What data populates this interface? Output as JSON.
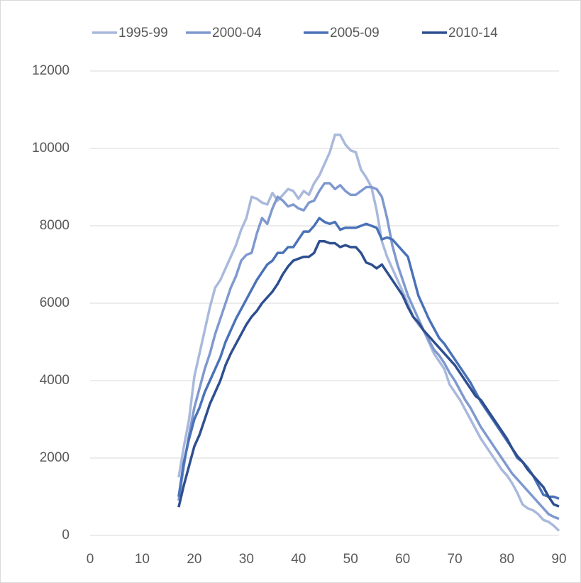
{
  "chart_data": {
    "type": "line",
    "x": [
      17,
      18,
      19,
      20,
      21,
      22,
      23,
      24,
      25,
      26,
      27,
      28,
      29,
      30,
      31,
      32,
      33,
      34,
      35,
      36,
      37,
      38,
      39,
      40,
      41,
      42,
      43,
      44,
      45,
      46,
      47,
      48,
      49,
      50,
      51,
      52,
      53,
      54,
      55,
      56,
      57,
      58,
      59,
      60,
      61,
      62,
      63,
      64,
      65,
      66,
      67,
      68,
      69,
      70,
      71,
      72,
      73,
      74,
      75,
      76,
      77,
      78,
      79,
      80,
      81,
      82,
      83,
      84,
      85,
      86,
      87,
      88,
      89,
      90
    ],
    "series": [
      {
        "name": "1995-99",
        "color": "#a9b9dc",
        "values": [
          1500,
          2300,
          3000,
          4100,
          4700,
          5300,
          5900,
          6400,
          6600,
          6900,
          7200,
          7500,
          7900,
          8200,
          8750,
          8700,
          8600,
          8550,
          8850,
          8650,
          8800,
          8950,
          8900,
          8700,
          8900,
          8800,
          9100,
          9300,
          9600,
          9900,
          10350,
          10350,
          10100,
          9950,
          9900,
          9450,
          9250,
          9000,
          8400,
          7600,
          7200,
          6900,
          6600,
          6300,
          6000,
          5650,
          5450,
          5300,
          5000,
          4700,
          4500,
          4300,
          3900,
          3700,
          3500,
          3250,
          3000,
          2750,
          2500,
          2300,
          2100,
          1900,
          1700,
          1550,
          1350,
          1100,
          800,
          700,
          650,
          550,
          400,
          350,
          250,
          120
        ]
      },
      {
        "name": "2000-04",
        "color": "#7f99cf",
        "values": [
          900,
          1800,
          2600,
          3300,
          3800,
          4300,
          4700,
          5200,
          5600,
          6000,
          6400,
          6700,
          7100,
          7250,
          7300,
          7800,
          8200,
          8050,
          8450,
          8750,
          8650,
          8500,
          8550,
          8450,
          8400,
          8600,
          8650,
          8900,
          9100,
          9100,
          8950,
          9050,
          8900,
          8800,
          8800,
          8900,
          9000,
          9000,
          8950,
          8750,
          8200,
          7500,
          7000,
          6600,
          6200,
          5900,
          5600,
          5300,
          5050,
          4800,
          4650,
          4450,
          4200,
          4000,
          3750,
          3500,
          3300,
          3050,
          2800,
          2600,
          2400,
          2200,
          2000,
          1800,
          1600,
          1450,
          1300,
          1150,
          1000,
          850,
          700,
          550,
          480,
          430
        ]
      },
      {
        "name": "2005-09",
        "color": "#4a72b8",
        "values": [
          1000,
          1900,
          2500,
          3000,
          3300,
          3700,
          4000,
          4300,
          4600,
          5000,
          5300,
          5600,
          5850,
          6100,
          6350,
          6600,
          6800,
          7000,
          7100,
          7300,
          7300,
          7450,
          7450,
          7650,
          7850,
          7850,
          8000,
          8200,
          8100,
          8050,
          8100,
          7900,
          7950,
          7950,
          7950,
          8000,
          8050,
          8000,
          7950,
          7650,
          7700,
          7650,
          7500,
          7350,
          7200,
          6700,
          6200,
          5900,
          5600,
          5350,
          5100,
          4950,
          4750,
          4550,
          4350,
          4150,
          3950,
          3700,
          3450,
          3250,
          3050,
          2850,
          2650,
          2450,
          2250,
          2000,
          1900,
          1750,
          1550,
          1300,
          1050,
          1000,
          1000,
          950
        ]
      },
      {
        "name": "2010-14",
        "color": "#2e4f8f",
        "values": [
          730,
          1300,
          1800,
          2300,
          2600,
          3000,
          3400,
          3700,
          4000,
          4400,
          4700,
          4950,
          5200,
          5450,
          5650,
          5800,
          6000,
          6150,
          6300,
          6500,
          6750,
          6950,
          7100,
          7150,
          7200,
          7200,
          7300,
          7600,
          7600,
          7550,
          7550,
          7450,
          7500,
          7450,
          7450,
          7300,
          7050,
          7000,
          6900,
          7000,
          6800,
          6600,
          6400,
          6200,
          5900,
          5650,
          5500,
          5300,
          5150,
          5000,
          4850,
          4700,
          4550,
          4400,
          4200,
          4000,
          3800,
          3600,
          3500,
          3300,
          3100,
          2900,
          2700,
          2500,
          2250,
          2050,
          1900,
          1700,
          1550,
          1400,
          1250,
          1000,
          800,
          750
        ]
      }
    ],
    "xlim": [
      0,
      90
    ],
    "xticks": [
      0,
      10,
      20,
      30,
      40,
      50,
      60,
      70,
      80,
      90
    ],
    "ylim": [
      0,
      12000
    ],
    "yticks": [
      0,
      2000,
      4000,
      6000,
      8000,
      10000,
      12000
    ],
    "grid": true,
    "legend": "top"
  }
}
